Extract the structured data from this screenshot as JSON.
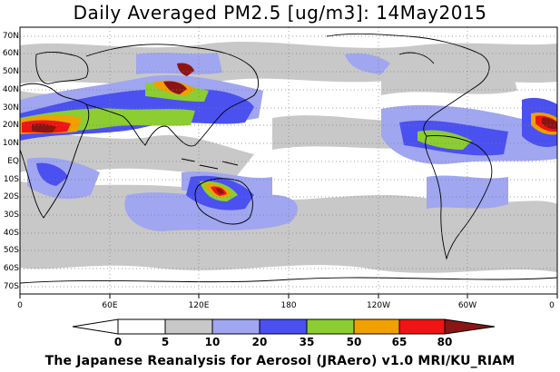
{
  "title": "Daily Averaged PM2.5 [ug/m3]: 14May2015",
  "footer": "The Japanese Reanalysis for Aerosol (JRAero) v1.0 MRI/KU_RIAM",
  "lat_labels": [
    "70N",
    "60N",
    "50N",
    "40N",
    "30N",
    "20N",
    "10N",
    "EQ",
    "10S",
    "20S",
    "30S",
    "40S",
    "50S",
    "60S",
    "70S"
  ],
  "lon_labels": [
    "0",
    "60E",
    "120E",
    "180",
    "120W",
    "60W",
    "0"
  ],
  "colorbar": {
    "levels": [
      "0",
      "5",
      "10",
      "20",
      "35",
      "50",
      "65",
      "80"
    ],
    "colors": [
      "#ffffff",
      "#c8c8c8",
      "#a0a6f0",
      "#4b50f0",
      "#8ccd32",
      "#f0a000",
      "#f01414",
      "#8c1414"
    ]
  }
}
